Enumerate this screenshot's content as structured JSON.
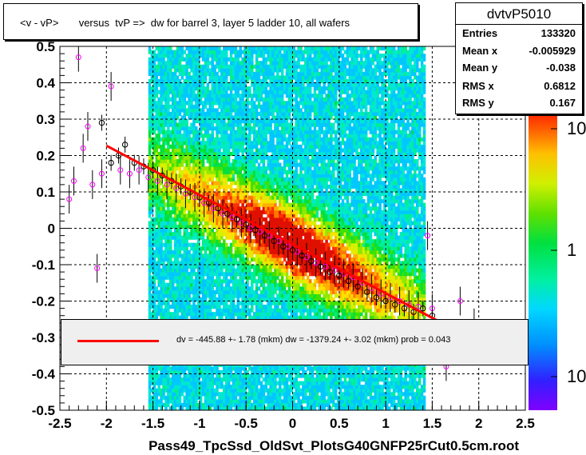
{
  "title": "<v - vP>       versus  tvP =>  dw for barrel 3, layer 5 ladder 10, all wafers",
  "stats": {
    "name": "dvtvP5010",
    "rows": [
      {
        "key": "Entries",
        "value": "133320"
      },
      {
        "key": "Mean x",
        "value": "-0.005929"
      },
      {
        "key": "Mean y",
        "value": "-0.038"
      },
      {
        "key": "RMS x",
        "value": "0.6812"
      },
      {
        "key": "RMS y",
        "value": "0.167"
      }
    ]
  },
  "legend": {
    "text": "dv = -445.88 +-  1.78 (mkm) dw = -1379.24 +-  3.02 (mkm) prob = 0.043",
    "line_color": "#ff0000"
  },
  "colors": {
    "fit_line": "#ff0000",
    "profile_black": "#000000",
    "profile_magenta": "#ff00ff",
    "legend_bg": "#efefef"
  },
  "chart_data": {
    "type": "heatmap",
    "xlabel": "Pass49_TpcSsd_OldSvt_PlotsG40GNFP25rCut0.5cm.root",
    "ylabel": "",
    "xlim": [
      -2.5,
      2.5
    ],
    "ylim": [
      -0.5,
      0.5
    ],
    "x_ticks": [
      "-2.5",
      "-2",
      "-1.5",
      "-1",
      "-0.5",
      "0",
      "0.5",
      "1",
      "1.5",
      "2",
      "2.5"
    ],
    "y_ticks": [
      "-0.5",
      "-0.4",
      "-0.3",
      "-0.2",
      "-0.1",
      "0",
      "0.1",
      "0.2",
      "0.3",
      "0.4",
      "0.5"
    ],
    "grid": true,
    "colorbar_ticks": [
      "10",
      "1",
      "10"
    ],
    "colorbar_scale": "log",
    "fit_line": {
      "x": [
        -2.0,
        1.55
      ],
      "y": [
        0.227,
        -0.253
      ]
    },
    "profile_black": {
      "x": [
        -2.05,
        -1.95,
        -1.87,
        -1.8,
        -1.7,
        -1.6,
        -1.5,
        -1.4,
        -1.3,
        -1.2,
        -1.1,
        -1.0,
        -0.9,
        -0.8,
        -0.7,
        -0.6,
        -0.5,
        -0.4,
        -0.3,
        -0.2,
        -0.1,
        0.0,
        0.1,
        0.2,
        0.3,
        0.4,
        0.5,
        0.6,
        0.7,
        0.8,
        0.9,
        1.0,
        1.1,
        1.2,
        1.3,
        1.4,
        1.5
      ],
      "y": [
        0.29,
        0.18,
        0.2,
        0.23,
        0.18,
        0.17,
        0.16,
        0.145,
        0.13,
        0.115,
        0.1,
        0.085,
        0.07,
        0.055,
        0.04,
        0.025,
        0.01,
        -0.005,
        -0.02,
        -0.035,
        -0.05,
        -0.06,
        -0.075,
        -0.09,
        -0.105,
        -0.12,
        -0.13,
        -0.145,
        -0.16,
        -0.175,
        -0.19,
        -0.2,
        -0.21,
        -0.22,
        -0.23,
        -0.22,
        -0.24
      ]
    },
    "profile_magenta": {
      "x": [
        -2.4,
        -2.35,
        -2.3,
        -2.25,
        -2.2,
        -2.15,
        -2.1,
        -2.05,
        -1.95,
        -1.85,
        -1.75,
        -1.65,
        -1.55,
        -1.45,
        -1.35,
        -1.25,
        -1.15,
        -1.05,
        -0.95,
        -0.85,
        -0.75,
        -0.65,
        -0.55,
        -0.45,
        -0.35,
        -0.25,
        -0.15,
        -0.05,
        0.05,
        0.15,
        0.25,
        0.35,
        0.45,
        0.55,
        0.65,
        0.75,
        0.85,
        0.95,
        1.05,
        1.15,
        1.25,
        1.35,
        1.45,
        1.5,
        1.65,
        1.8,
        1.95
      ],
      "y": [
        0.08,
        0.13,
        0.47,
        0.22,
        0.28,
        0.12,
        -0.11,
        0.15,
        0.39,
        0.16,
        0.15,
        0.16,
        0.14,
        0.13,
        0.12,
        0.11,
        0.095,
        0.085,
        0.07,
        0.055,
        0.04,
        0.03,
        0.015,
        0.0,
        -0.01,
        -0.02,
        -0.035,
        -0.05,
        -0.065,
        -0.08,
        -0.095,
        -0.105,
        -0.115,
        -0.125,
        -0.135,
        -0.15,
        -0.165,
        -0.18,
        -0.19,
        -0.2,
        -0.21,
        -0.215,
        -0.02,
        -0.22,
        -0.38,
        -0.2,
        -0.26
      ]
    }
  }
}
